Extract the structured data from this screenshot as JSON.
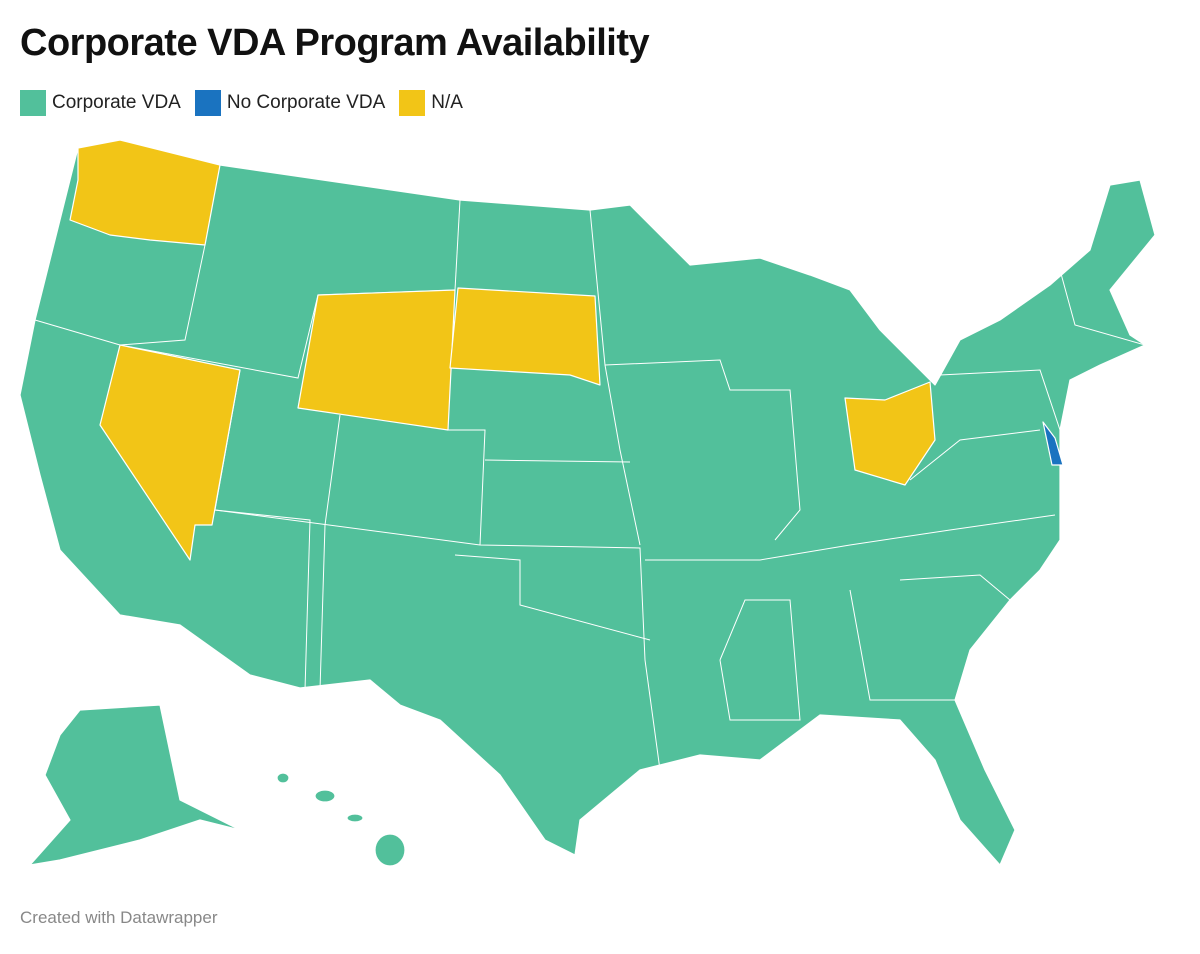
{
  "title": "Corporate VDA Program Availability",
  "legend": [
    {
      "label": "Corporate VDA",
      "color": "#52c09b"
    },
    {
      "label": "No Corporate VDA",
      "color": "#1a73c0"
    },
    {
      "label": "N/A",
      "color": "#f2c517"
    }
  ],
  "footer": "Created with Datawrapper"
}
